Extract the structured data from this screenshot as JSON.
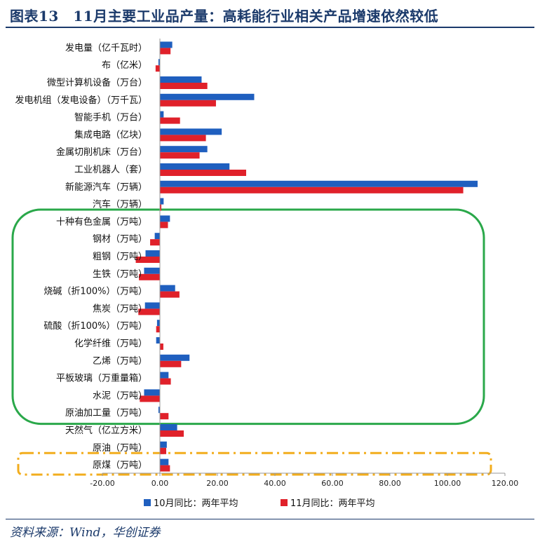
{
  "page": {
    "title": "图表13　11月主要工业品产量：高耗能行业相关产品增速依然较低",
    "source": "资料来源：Wind，华创证券"
  },
  "chart_data": {
    "type": "bar",
    "orientation": "horizontal",
    "title": "11月主要工业品产量：高耗能行业相关产品增速依然较低",
    "xlim": [
      -20,
      120
    ],
    "xticks": [
      -20,
      0,
      20,
      40,
      60,
      80,
      100,
      120
    ],
    "xtick_labels": [
      "-20.00",
      "0.00",
      "20.00",
      "40.00",
      "60.00",
      "80.00",
      "100.00",
      "120.00"
    ],
    "legend_position": "bottom",
    "categories": [
      "发电量（亿千瓦时）",
      "布（亿米）",
      "微型计算机设备（万台）",
      "发电机组（发电设备）（万千瓦）",
      "智能手机（万台）",
      "集成电路（亿块）",
      "金属切削机床（万台）",
      "工业机器人（套）",
      "新能源汽车（万辆）",
      "汽车（万辆）",
      "十种有色金属（万吨）",
      "钢材（万吨）",
      "粗钢（万吨）",
      "生铁（万吨）",
      "烧碱（折100%）（万吨）",
      "焦炭（万吨）",
      "硫酸（折100%）（万吨）",
      "化学纤维（万吨）",
      "乙烯（万吨）",
      "平板玻璃（万重量箱）",
      "水泥（万吨）",
      "原油加工量（万吨）",
      "天然气（亿立方米）",
      "原油（万吨）",
      "原煤（万吨）"
    ],
    "series": [
      {
        "name": "10月同比：两年平均",
        "color": "#1f5fbf",
        "values": [
          4.3,
          -0.5,
          14.5,
          32.8,
          1.3,
          21.5,
          16.5,
          24.2,
          110.5,
          1.3,
          3.5,
          -1.8,
          -5.0,
          -5.5,
          5.3,
          -5.2,
          -1.0,
          -1.3,
          10.3,
          3.0,
          -5.5,
          -0.5,
          6.0,
          2.4,
          3.0
        ]
      },
      {
        "name": "11月同比：两年平均",
        "color": "#e0212a",
        "values": [
          3.7,
          -1.5,
          16.5,
          19.5,
          7.0,
          16.0,
          13.8,
          30.0,
          105.5,
          0.5,
          2.8,
          -3.4,
          -8.4,
          -7.3,
          6.8,
          -7.5,
          -1.3,
          1.2,
          7.4,
          3.8,
          -7.0,
          3.0,
          8.3,
          2.2,
          3.5
        ]
      }
    ],
    "annotations": [
      {
        "shape": "rounded-rectangle",
        "style": "solid",
        "color": "#2aa84a",
        "spans": [
          "十种有色金属（万吨）",
          "原油加工量（万吨）"
        ]
      },
      {
        "shape": "rounded-rectangle",
        "style": "dash-dot",
        "color": "#f2ad1d",
        "spans": [
          "原煤（万吨）",
          "原煤（万吨）"
        ]
      }
    ]
  }
}
